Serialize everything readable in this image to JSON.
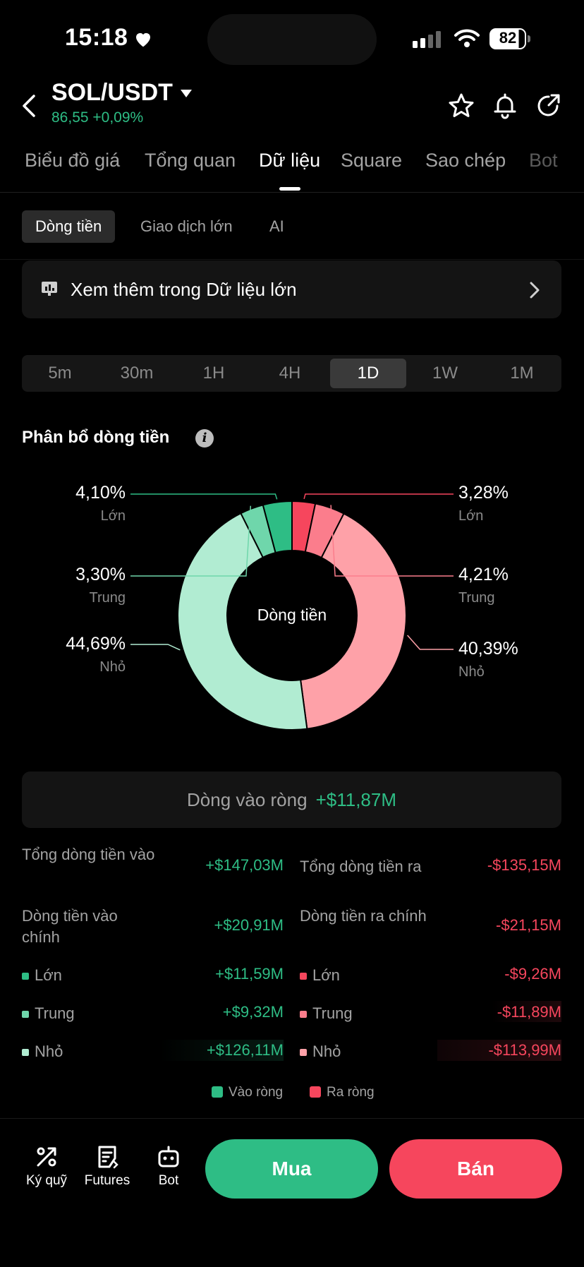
{
  "status_bar": {
    "time": "15:18",
    "battery": "82"
  },
  "header": {
    "pair": "SOL/USDT",
    "price_change": "86,55 +0,09%"
  },
  "tabs": [
    {
      "label": "Biểu đồ giá"
    },
    {
      "label": "Tổng quan"
    },
    {
      "label": "Dữ liệu",
      "active": true
    },
    {
      "label": "Square"
    },
    {
      "label": "Sao chép"
    },
    {
      "label": "Bot"
    }
  ],
  "subtabs": [
    {
      "label": "Dòng tiền",
      "active": true
    },
    {
      "label": "Giao dịch lớn"
    },
    {
      "label": "AI"
    }
  ],
  "banner": {
    "text": "Xem thêm trong Dữ liệu lớn"
  },
  "timeframes": [
    "5m",
    "30m",
    "1H",
    "4H",
    "1D",
    "1W",
    "1M"
  ],
  "timeframe_selected": "1D",
  "section_title": "Phân bổ dòng tiền",
  "chart_data": {
    "type": "pie",
    "center_label": "Dòng tiền",
    "slices": [
      {
        "name": "Lớn",
        "side": "inflow",
        "percent": "4,10%",
        "value": 4.1,
        "color": "#2ebd85"
      },
      {
        "name": "Trung",
        "side": "inflow",
        "percent": "3,30%",
        "value": 3.3,
        "color": "#6fd6ab"
      },
      {
        "name": "Nhỏ",
        "side": "inflow",
        "percent": "44,69%",
        "value": 44.69,
        "color": "#b1ecd2"
      },
      {
        "name": "Lớn",
        "side": "outflow",
        "percent": "3,28%",
        "value": 3.28,
        "color": "#f6465d"
      },
      {
        "name": "Trung",
        "side": "outflow",
        "percent": "4,21%",
        "value": 4.21,
        "color": "#fb7d8c"
      },
      {
        "name": "Nhỏ",
        "side": "outflow",
        "percent": "40,39%",
        "value": 40.39,
        "color": "#fea1a8"
      }
    ]
  },
  "net_inflow": {
    "label": "Dòng vào ròng",
    "value": "+$11,87M"
  },
  "stats": {
    "total_in": {
      "label": "Tổng dòng tiền vào",
      "value": "+$147,03M"
    },
    "total_out": {
      "label": "Tổng dòng tiền ra",
      "value": "-$135,15M"
    },
    "main_in": {
      "label": "Dòng tiền vào chính",
      "value": "+$20,91M"
    },
    "main_out": {
      "label": "Dòng tiền ra chính",
      "value": "-$21,15M"
    },
    "rows": [
      {
        "in_label": "Lớn",
        "in_value": "+$11,59M",
        "out_label": "Lớn",
        "out_value": "-$9,26M"
      },
      {
        "in_label": "Trung",
        "in_value": "+$9,32M",
        "out_label": "Trung",
        "out_value": "-$11,89M"
      },
      {
        "in_label": "Nhỏ",
        "in_value": "+$126,11M",
        "out_label": "Nhỏ",
        "out_value": "-$113,99M"
      }
    ]
  },
  "legend": {
    "in": "Vào ròng",
    "out": "Ra ròng"
  },
  "bottom_nav": [
    {
      "label": "Ký quỹ",
      "icon": "margin-icon"
    },
    {
      "label": "Futures",
      "icon": "futures-icon"
    },
    {
      "label": "Bot",
      "icon": "bot-icon"
    }
  ],
  "actions": {
    "buy": "Mua",
    "sell": "Bán"
  },
  "colors": {
    "green": "#2ebd85",
    "red": "#f6465d"
  }
}
